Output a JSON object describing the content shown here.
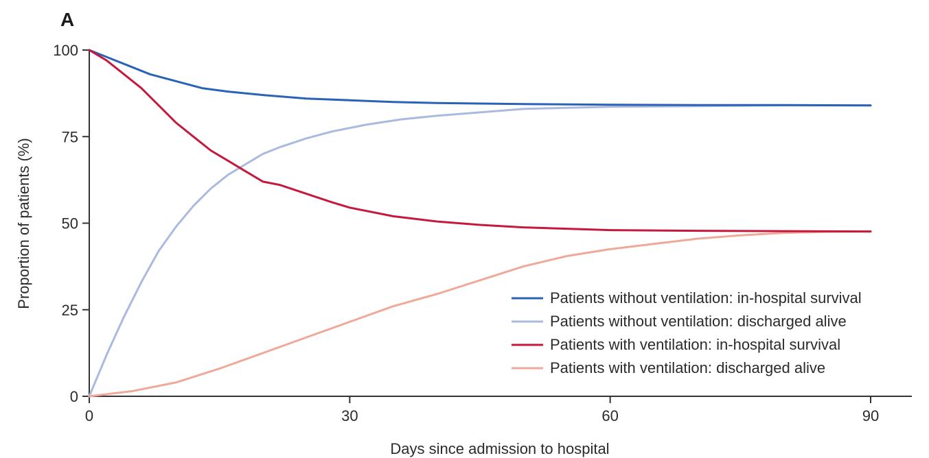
{
  "panel_label": "A",
  "chart_data": {
    "type": "line",
    "title": "",
    "xlabel": "Days since admission to hospital",
    "ylabel": "Proportion of patients (%)",
    "xlim": [
      0,
      90
    ],
    "ylim": [
      0,
      100
    ],
    "xticks": [
      0,
      30,
      60,
      90
    ],
    "yticks": [
      0,
      25,
      50,
      75,
      100
    ],
    "grid": false,
    "legend_position": "bottom-right",
    "series": [
      {
        "name": "Patients without ventilation: in-hospital survival",
        "color": "#2a62b5",
        "x": [
          0,
          2,
          4,
          7,
          10,
          13,
          16,
          20,
          25,
          30,
          35,
          40,
          50,
          60,
          70,
          80,
          90
        ],
        "y": [
          100,
          98,
          96,
          93,
          91,
          89,
          88,
          87,
          86,
          85.5,
          85,
          84.7,
          84.4,
          84.2,
          84.1,
          84.1,
          84
        ]
      },
      {
        "name": "Patients without ventilation: discharged alive",
        "color": "#a9b9e0",
        "x": [
          0,
          2,
          4,
          6,
          8,
          10,
          12,
          14,
          16,
          18,
          20,
          22,
          25,
          28,
          32,
          36,
          40,
          45,
          50,
          55,
          60,
          70,
          80,
          90
        ],
        "y": [
          0,
          12,
          23,
          33,
          42,
          49,
          55,
          60,
          64,
          67,
          70,
          72,
          74.5,
          76.5,
          78.5,
          80,
          81,
          82,
          83,
          83.3,
          83.6,
          83.8,
          84,
          84
        ]
      },
      {
        "name": "Patients with ventilation: in-hospital survival",
        "color": "#c4183c",
        "x": [
          0,
          2,
          4,
          6,
          8,
          10,
          12,
          14,
          16,
          18,
          20,
          22,
          25,
          28,
          30,
          35,
          40,
          45,
          50,
          55,
          60,
          70,
          80,
          90
        ],
        "y": [
          100,
          97,
          93,
          89,
          84,
          79,
          75,
          71,
          68,
          65,
          62,
          61,
          58.5,
          56,
          54.5,
          52,
          50.5,
          49.5,
          48.8,
          48.4,
          48,
          47.8,
          47.7,
          47.6
        ]
      },
      {
        "name": "Patients with ventilation: discharged alive",
        "color": "#f0a898",
        "x": [
          0,
          5,
          10,
          15,
          20,
          25,
          30,
          35,
          40,
          45,
          50,
          55,
          60,
          65,
          70,
          75,
          80,
          85,
          90
        ],
        "y": [
          0,
          1.5,
          4,
          8,
          12.5,
          17,
          21.5,
          26,
          29.5,
          33.5,
          37.5,
          40.5,
          42.5,
          44,
          45.5,
          46.5,
          47.2,
          47.5,
          47.6
        ]
      }
    ]
  }
}
